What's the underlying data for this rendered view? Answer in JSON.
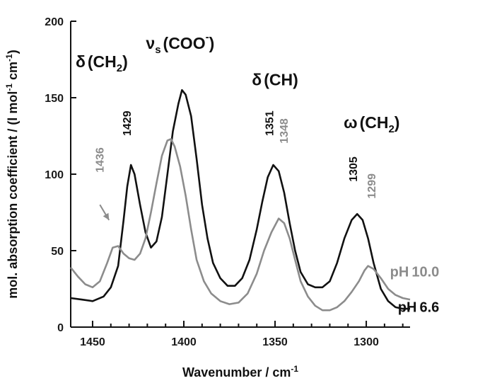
{
  "chart_data": {
    "type": "line",
    "xlabel": "Wavenumber / cm",
    "xlabel_sup": "-1",
    "ylabel": "mol. absorption coefficient / (l mol",
    "ylabel_sup1": "-1",
    "ylabel_mid": " cm",
    "ylabel_sup2": "-1",
    "ylabel_end": ")",
    "xlim": [
      1462,
      1276
    ],
    "ylim": [
      0,
      200
    ],
    "x_reversed": true,
    "x_ticks": [
      1450,
      1400,
      1350,
      1300
    ],
    "y_ticks": [
      0,
      50,
      100,
      150,
      200
    ],
    "grid": false,
    "series": [
      {
        "name": "pH 6.6",
        "color": "#111111",
        "points": [
          [
            1462,
            19
          ],
          [
            1456,
            18
          ],
          [
            1450,
            17
          ],
          [
            1444,
            20
          ],
          [
            1440,
            26
          ],
          [
            1436,
            40
          ],
          [
            1433,
            70
          ],
          [
            1431,
            92
          ],
          [
            1429,
            106
          ],
          [
            1427,
            100
          ],
          [
            1424,
            80
          ],
          [
            1421,
            62
          ],
          [
            1418,
            52
          ],
          [
            1415,
            56
          ],
          [
            1412,
            72
          ],
          [
            1409,
            100
          ],
          [
            1406,
            128
          ],
          [
            1403,
            146
          ],
          [
            1401,
            155
          ],
          [
            1399,
            152
          ],
          [
            1396,
            138
          ],
          [
            1393,
            110
          ],
          [
            1390,
            80
          ],
          [
            1387,
            58
          ],
          [
            1384,
            42
          ],
          [
            1380,
            32
          ],
          [
            1376,
            27
          ],
          [
            1372,
            27
          ],
          [
            1368,
            32
          ],
          [
            1364,
            44
          ],
          [
            1360,
            64
          ],
          [
            1357,
            82
          ],
          [
            1354,
            98
          ],
          [
            1351,
            106
          ],
          [
            1348,
            102
          ],
          [
            1345,
            88
          ],
          [
            1342,
            68
          ],
          [
            1339,
            50
          ],
          [
            1336,
            36
          ],
          [
            1332,
            28
          ],
          [
            1328,
            26
          ],
          [
            1324,
            26
          ],
          [
            1320,
            30
          ],
          [
            1316,
            42
          ],
          [
            1312,
            58
          ],
          [
            1308,
            70
          ],
          [
            1305,
            74
          ],
          [
            1302,
            70
          ],
          [
            1299,
            58
          ],
          [
            1296,
            42
          ],
          [
            1292,
            25
          ],
          [
            1288,
            17
          ],
          [
            1284,
            13
          ],
          [
            1280,
            12
          ],
          [
            1276,
            12
          ]
        ]
      },
      {
        "name": "pH 10.0",
        "color": "#8c8c8c",
        "points": [
          [
            1462,
            39
          ],
          [
            1458,
            33
          ],
          [
            1454,
            28
          ],
          [
            1450,
            26
          ],
          [
            1446,
            30
          ],
          [
            1442,
            42
          ],
          [
            1439,
            52
          ],
          [
            1436,
            53
          ],
          [
            1433,
            48
          ],
          [
            1430,
            45
          ],
          [
            1427,
            44
          ],
          [
            1424,
            48
          ],
          [
            1421,
            58
          ],
          [
            1418,
            75
          ],
          [
            1415,
            94
          ],
          [
            1412,
            112
          ],
          [
            1409,
            122
          ],
          [
            1407,
            123
          ],
          [
            1405,
            118
          ],
          [
            1402,
            105
          ],
          [
            1399,
            86
          ],
          [
            1396,
            64
          ],
          [
            1393,
            44
          ],
          [
            1389,
            30
          ],
          [
            1385,
            22
          ],
          [
            1380,
            17
          ],
          [
            1375,
            15
          ],
          [
            1370,
            16
          ],
          [
            1365,
            22
          ],
          [
            1360,
            35
          ],
          [
            1356,
            50
          ],
          [
            1352,
            62
          ],
          [
            1348,
            71
          ],
          [
            1345,
            68
          ],
          [
            1342,
            58
          ],
          [
            1339,
            44
          ],
          [
            1336,
            30
          ],
          [
            1332,
            20
          ],
          [
            1328,
            14
          ],
          [
            1324,
            11
          ],
          [
            1320,
            11
          ],
          [
            1316,
            13
          ],
          [
            1312,
            17
          ],
          [
            1308,
            23
          ],
          [
            1304,
            30
          ],
          [
            1301,
            37
          ],
          [
            1299,
            40
          ],
          [
            1296,
            38
          ],
          [
            1292,
            32
          ],
          [
            1288,
            25
          ],
          [
            1284,
            21
          ],
          [
            1280,
            19
          ],
          [
            1276,
            18
          ]
        ]
      }
    ],
    "series_labels": [
      {
        "name_prefix": "pH",
        "name_value": "6.6",
        "color": "#111111",
        "x": 1260,
        "y": 10
      },
      {
        "name_prefix": "pH",
        "name_value": "10.0",
        "color": "#8c8c8c",
        "x": 1260,
        "y": 33
      }
    ],
    "band_labels": [
      {
        "symbol": "δ",
        "text": "(CH",
        "sub": "2",
        "end": ")",
        "x": 1445,
        "y": 170
      },
      {
        "symbol": "ν",
        "sub_before": "s",
        "text": "(COO",
        "sup": "-",
        "end": ")",
        "x": 1402,
        "y": 182
      },
      {
        "symbol": "δ",
        "text": "(CH)",
        "x": 1350,
        "y": 158
      },
      {
        "symbol": "ω",
        "text": "(CH",
        "sub": "2",
        "end": ")",
        "x": 1297,
        "y": 130
      }
    ],
    "peak_labels": [
      {
        "text": "1429",
        "color": "#111111",
        "x": 1429,
        "y": 125
      },
      {
        "text": "1436",
        "color": "#8c8c8c",
        "x": 1444,
        "y": 101
      },
      {
        "text": "1351",
        "color": "#111111",
        "x": 1351,
        "y": 125
      },
      {
        "text": "1348",
        "color": "#8c8c8c",
        "x": 1343,
        "y": 120
      },
      {
        "text": "1305",
        "color": "#111111",
        "x": 1305,
        "y": 95
      },
      {
        "text": "1299",
        "color": "#8c8c8c",
        "x": 1295,
        "y": 84
      }
    ],
    "annotations": [
      {
        "type": "arrow",
        "color": "#8c8c8c",
        "from": [
          1446,
          80
        ],
        "to": [
          1441,
          70
        ]
      }
    ]
  }
}
